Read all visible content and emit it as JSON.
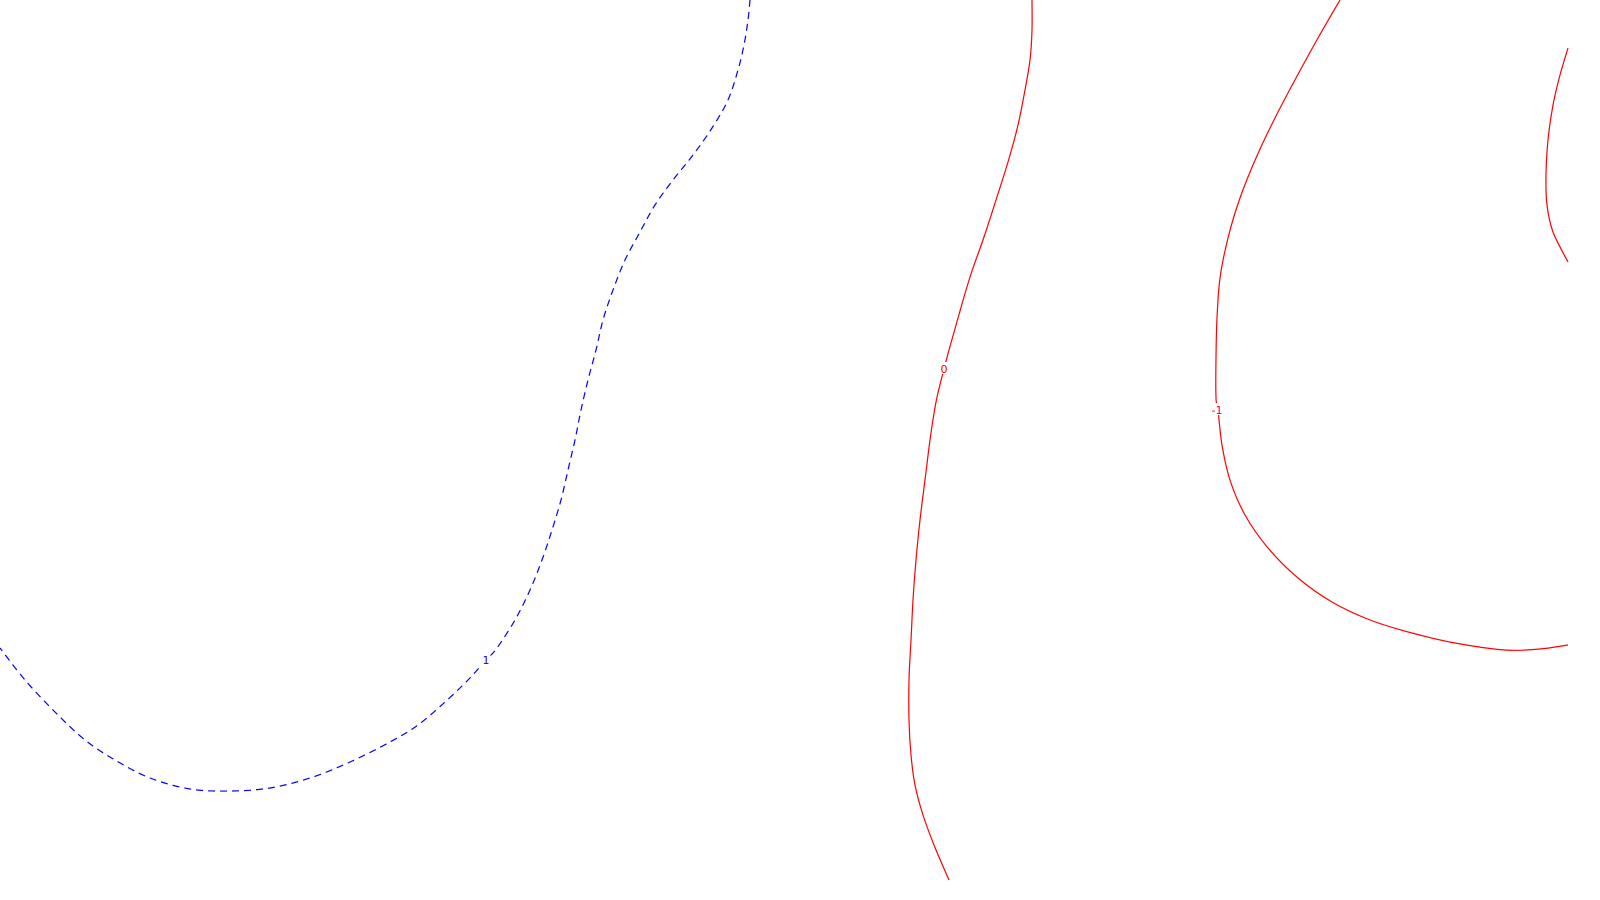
{
  "chart_data": {
    "type": "contour",
    "title": "",
    "xlabel": "",
    "ylabel": "",
    "grid": false,
    "legend": "none",
    "levels": [
      {
        "name": "",
        "level": 1,
        "label": "1",
        "color": "#0000ff",
        "style": "dashed",
        "points": [
          [
            750,
            0
          ],
          [
            748,
            20
          ],
          [
            744,
            45
          ],
          [
            738,
            70
          ],
          [
            728,
            100
          ],
          [
            712,
            128
          ],
          [
            693,
            155
          ],
          [
            673,
            180
          ],
          [
            655,
            205
          ],
          [
            640,
            232
          ],
          [
            625,
            260
          ],
          [
            613,
            290
          ],
          [
            603,
            320
          ],
          [
            596,
            350
          ],
          [
            588,
            380
          ],
          [
            581,
            410
          ],
          [
            575,
            440
          ],
          [
            568,
            470
          ],
          [
            561,
            500
          ],
          [
            552,
            530
          ],
          [
            542,
            560
          ],
          [
            530,
            590
          ],
          [
            515,
            620
          ],
          [
            497,
            648
          ],
          [
            486,
            660
          ],
          [
            468,
            680
          ],
          [
            445,
            702
          ],
          [
            418,
            725
          ],
          [
            390,
            742
          ],
          [
            350,
            762
          ],
          [
            310,
            778
          ],
          [
            270,
            788
          ],
          [
            230,
            791
          ],
          [
            190,
            789
          ],
          [
            150,
            778
          ],
          [
            115,
            760
          ],
          [
            85,
            740
          ],
          [
            55,
            712
          ],
          [
            25,
            680
          ],
          [
            0,
            648
          ]
        ]
      },
      {
        "name": "",
        "level": 0,
        "label": "0",
        "color": "#ff0000",
        "style": "solid",
        "points": [
          [
            1032,
            0
          ],
          [
            1032,
            30
          ],
          [
            1030,
            60
          ],
          [
            1025,
            90
          ],
          [
            1018,
            125
          ],
          [
            1008,
            162
          ],
          [
            996,
            200
          ],
          [
            984,
            237
          ],
          [
            970,
            277
          ],
          [
            958,
            318
          ],
          [
            949,
            350
          ],
          [
            944,
            369
          ],
          [
            936,
            402
          ],
          [
            930,
            440
          ],
          [
            925,
            480
          ],
          [
            920,
            520
          ],
          [
            916,
            560
          ],
          [
            913,
            600
          ],
          [
            911,
            640
          ],
          [
            909,
            680
          ],
          [
            909,
            720
          ],
          [
            911,
            755
          ],
          [
            915,
            785
          ],
          [
            923,
            815
          ],
          [
            934,
            845
          ],
          [
            949,
            880
          ]
        ]
      },
      {
        "name": "",
        "level": -1,
        "label": "-1",
        "color": "#ff0000",
        "style": "solid",
        "points": [
          [
            1340,
            0
          ],
          [
            1318,
            38
          ],
          [
            1296,
            78
          ],
          [
            1275,
            118
          ],
          [
            1256,
            158
          ],
          [
            1240,
            198
          ],
          [
            1228,
            238
          ],
          [
            1220,
            278
          ],
          [
            1217,
            318
          ],
          [
            1216,
            358
          ],
          [
            1216,
            398
          ],
          [
            1218,
            410
          ],
          [
            1222,
            445
          ],
          [
            1230,
            480
          ],
          [
            1245,
            515
          ],
          [
            1268,
            548
          ],
          [
            1298,
            578
          ],
          [
            1332,
            602
          ],
          [
            1370,
            620
          ],
          [
            1412,
            633
          ],
          [
            1455,
            643
          ],
          [
            1505,
            650
          ],
          [
            1540,
            649
          ],
          [
            1568,
            645
          ]
        ]
      },
      {
        "name": "",
        "level": -1,
        "label": "",
        "color": "#ff0000",
        "style": "solid",
        "points": [
          [
            1568,
            48
          ],
          [
            1560,
            75
          ],
          [
            1553,
            105
          ],
          [
            1548,
            140
          ],
          [
            1546,
            175
          ],
          [
            1547,
            205
          ],
          [
            1553,
            232
          ],
          [
            1568,
            262
          ]
        ]
      }
    ],
    "label_positions": [
      [
        486,
        660
      ],
      [
        944,
        369
      ],
      [
        1217,
        410
      ]
    ]
  }
}
